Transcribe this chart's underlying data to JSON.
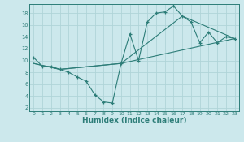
{
  "xlabel": "Humidex (Indice chaleur)",
  "bg_color": "#cce8ec",
  "line_color": "#2d7d78",
  "grid_color": "#b0d4d8",
  "xlim": [
    -0.5,
    23.5
  ],
  "ylim": [
    1.5,
    19.5
  ],
  "xticks": [
    0,
    1,
    2,
    3,
    4,
    5,
    6,
    7,
    8,
    9,
    10,
    11,
    12,
    13,
    14,
    15,
    16,
    17,
    18,
    19,
    20,
    21,
    22,
    23
  ],
  "yticks": [
    2,
    4,
    6,
    8,
    10,
    12,
    14,
    16,
    18
  ],
  "line1_x": [
    0,
    1,
    2,
    3,
    4,
    5,
    6,
    7,
    8,
    9,
    10,
    11,
    12,
    13,
    14,
    15,
    16,
    17,
    18,
    19,
    20,
    21,
    22,
    23
  ],
  "line1_y": [
    10.5,
    9.0,
    9.0,
    8.5,
    8.0,
    7.2,
    6.5,
    4.2,
    3.0,
    2.8,
    9.5,
    14.5,
    10.0,
    16.5,
    18.0,
    18.2,
    19.2,
    17.5,
    16.5,
    13.0,
    14.8,
    13.0,
    14.0,
    13.7
  ],
  "line2_x": [
    0,
    3,
    10,
    23
  ],
  "line2_y": [
    9.5,
    8.5,
    9.5,
    13.7
  ],
  "line3_x": [
    0,
    3,
    10,
    17,
    23
  ],
  "line3_y": [
    9.5,
    8.5,
    9.5,
    17.5,
    13.7
  ]
}
